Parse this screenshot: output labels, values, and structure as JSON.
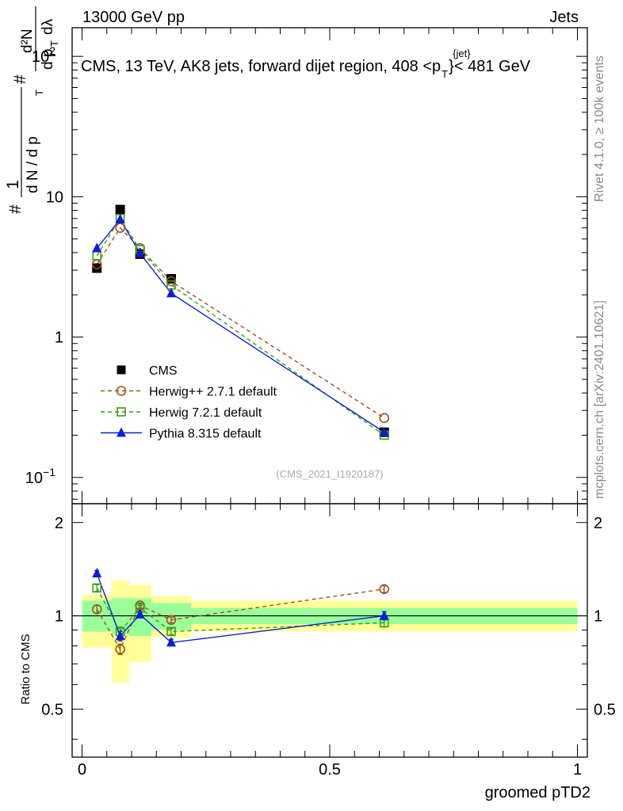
{
  "header": {
    "left": "13000 GeV pp",
    "right": "Jets"
  },
  "side_text": {
    "rivet": "Rivet 4.1.0, ≥ 100k events",
    "mcplots": "mcplots.cern.ch [arXiv:2401.10621]"
  },
  "chart_data": {
    "type": "line",
    "title_parts": {
      "main": "CMS, 13 TeV, AK8 jets, forward dijet region, 408 <p",
      "sup": "{jet}",
      "sub": "T",
      "tail": "}< 481 GeV"
    },
    "ylabel_parts": {
      "hash1": "#",
      "frac1_num": "1",
      "frac1_den": "d N / d p",
      "frac1_den_sub": "T",
      "hash2": "#",
      "frac2_num": "d²N",
      "frac2_den": "d p",
      "frac2_den_sub": "T",
      "frac2_den_tail": "dλ"
    },
    "xlabel": "groomed pTD2",
    "ratio_ylabel": "Ratio to CMS",
    "reference": "(CMS_2021_I1920187)",
    "main_ylim": [
      0.065,
      160
    ],
    "main_yscale": "log",
    "main_yticks": [
      {
        "value": 0.1,
        "base": "10",
        "exp": "−1"
      },
      {
        "value": 1,
        "base": "1",
        "exp": ""
      },
      {
        "value": 10,
        "base": "10",
        "exp": ""
      },
      {
        "value": 100,
        "base": "10",
        "exp": "2"
      }
    ],
    "xlim": [
      -0.02,
      1.02
    ],
    "xticks": [
      {
        "value": 0,
        "label": "0"
      },
      {
        "value": 0.5,
        "label": "0.5"
      },
      {
        "value": 1,
        "label": "1"
      }
    ],
    "ratio_ylim": [
      0.35,
      2.3
    ],
    "ratio_yscale": "log",
    "ratio_yticks": [
      {
        "value": 0.5,
        "label": "0.5"
      },
      {
        "value": 1,
        "label": "1"
      },
      {
        "value": 2,
        "label": "2"
      }
    ],
    "bin_edges": [
      0,
      0.06,
      0.095,
      0.14,
      0.22,
      1.0
    ],
    "x": [
      0.03,
      0.077,
      0.117,
      0.18,
      0.61
    ],
    "band_green": [
      [
        0.89,
        1.12
      ],
      [
        0.87,
        1.14
      ],
      [
        0.86,
        1.14
      ],
      [
        0.9,
        1.1
      ],
      [
        0.94,
        1.06
      ]
    ],
    "band_yellow": [
      [
        0.79,
        1.17
      ],
      [
        0.61,
        1.3
      ],
      [
        0.71,
        1.26
      ],
      [
        0.85,
        1.16
      ],
      [
        0.89,
        1.12
      ]
    ],
    "series": [
      {
        "name": "CMS",
        "marker": "filled-square",
        "color": "#000000",
        "line": "none",
        "values": [
          3.1,
          8.1,
          3.9,
          2.6,
          0.21
        ]
      },
      {
        "name": "Herwig++ 2.7.1 default",
        "marker": "open-circle",
        "color": "#a0501a",
        "line": "dashed",
        "values": [
          3.3,
          6.0,
          4.3,
          2.5,
          0.265
        ],
        "ratio": [
          1.05,
          0.78,
          1.08,
          0.97,
          1.22
        ],
        "ratio_err": [
          0.03,
          0.03,
          0.02,
          0.02,
          0.03
        ]
      },
      {
        "name": "Herwig 7.2.1 default",
        "marker": "open-square",
        "color": "#3d9a1a",
        "line": "dashed",
        "values": [
          3.8,
          7.0,
          4.2,
          2.35,
          0.2
        ],
        "ratio": [
          1.23,
          0.89,
          1.06,
          0.89,
          0.95
        ],
        "ratio_err": [
          0.03,
          0.03,
          0.02,
          0.02,
          0.03
        ]
      },
      {
        "name": "Pythia 8.315 default",
        "marker": "filled-triangle",
        "color": "#0b1ed6",
        "line": "solid",
        "values": [
          4.3,
          6.9,
          3.95,
          2.05,
          0.21
        ],
        "ratio": [
          1.37,
          0.86,
          1.01,
          0.82,
          1.0
        ],
        "ratio_err": [
          0.03,
          0.03,
          0.02,
          0.02,
          0.03
        ]
      }
    ]
  }
}
